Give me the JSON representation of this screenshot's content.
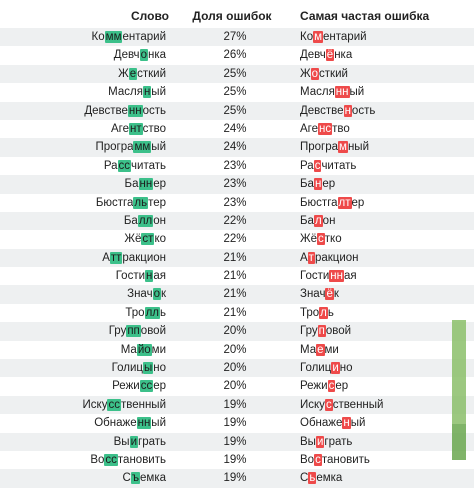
{
  "header": {
    "word": "Слово",
    "percent": "Доля ошибок",
    "common": "Самая частая ошибка"
  },
  "rows": [
    {
      "word": [
        [
          "Ко",
          ""
        ],
        [
          "мм",
          "g"
        ],
        [
          "ентарий",
          ""
        ]
      ],
      "pct": "27%",
      "common": [
        [
          "Ко",
          ""
        ],
        [
          "м",
          "r"
        ],
        [
          "ентарий",
          ""
        ]
      ]
    },
    {
      "word": [
        [
          "Девч",
          ""
        ],
        [
          "о",
          "g"
        ],
        [
          "нка",
          ""
        ]
      ],
      "pct": "26%",
      "common": [
        [
          "Девч",
          ""
        ],
        [
          "ё",
          "r"
        ],
        [
          "нка",
          ""
        ]
      ]
    },
    {
      "word": [
        [
          "Ж",
          ""
        ],
        [
          "е",
          "g"
        ],
        [
          "сткий",
          ""
        ]
      ],
      "pct": "25%",
      "common": [
        [
          "Ж",
          ""
        ],
        [
          "о",
          "r"
        ],
        [
          "сткий",
          ""
        ]
      ]
    },
    {
      "word": [
        [
          "Масля",
          ""
        ],
        [
          "н",
          "g"
        ],
        [
          "ый",
          ""
        ]
      ],
      "pct": "25%",
      "common": [
        [
          "Масля",
          ""
        ],
        [
          "нн",
          "r"
        ],
        [
          "ый",
          ""
        ]
      ]
    },
    {
      "word": [
        [
          "Девстве",
          ""
        ],
        [
          "нн",
          "g"
        ],
        [
          "ость",
          ""
        ]
      ],
      "pct": "25%",
      "common": [
        [
          "Девстве",
          ""
        ],
        [
          "н",
          "r"
        ],
        [
          "ость",
          ""
        ]
      ]
    },
    {
      "word": [
        [
          "Аге",
          ""
        ],
        [
          "нт",
          "g"
        ],
        [
          "ство",
          ""
        ]
      ],
      "pct": "24%",
      "common": [
        [
          "Аге",
          ""
        ],
        [
          "нс",
          "r"
        ],
        [
          "тво",
          ""
        ]
      ]
    },
    {
      "word": [
        [
          "Програ",
          ""
        ],
        [
          "мм",
          "g"
        ],
        [
          "ый",
          ""
        ]
      ],
      "pct": "24%",
      "common": [
        [
          "Програ",
          ""
        ],
        [
          "м",
          "r"
        ],
        [
          "ный",
          ""
        ]
      ]
    },
    {
      "word": [
        [
          "Ра",
          ""
        ],
        [
          "сс",
          "g"
        ],
        [
          "читать",
          ""
        ]
      ],
      "pct": "23%",
      "common": [
        [
          "Ра",
          ""
        ],
        [
          "с",
          "r"
        ],
        [
          "читать",
          ""
        ]
      ]
    },
    {
      "word": [
        [
          "Ба",
          ""
        ],
        [
          "нн",
          "g"
        ],
        [
          "ер",
          ""
        ]
      ],
      "pct": "23%",
      "common": [
        [
          "Ба",
          ""
        ],
        [
          "н",
          "r"
        ],
        [
          "ер",
          ""
        ]
      ]
    },
    {
      "word": [
        [
          "Бюстга",
          ""
        ],
        [
          "ль",
          "g"
        ],
        [
          "тер",
          ""
        ]
      ],
      "pct": "23%",
      "common": [
        [
          "Бюстга",
          ""
        ],
        [
          "лт",
          "r"
        ],
        [
          "ер",
          ""
        ]
      ]
    },
    {
      "word": [
        [
          "Ба",
          ""
        ],
        [
          "лл",
          "g"
        ],
        [
          "он",
          ""
        ]
      ],
      "pct": "22%",
      "common": [
        [
          "Ба",
          ""
        ],
        [
          "л",
          "r"
        ],
        [
          "он",
          ""
        ]
      ]
    },
    {
      "word": [
        [
          "Жё",
          ""
        ],
        [
          "ст",
          "g"
        ],
        [
          "ко",
          ""
        ]
      ],
      "pct": "22%",
      "common": [
        [
          "Жё",
          ""
        ],
        [
          "с",
          "r"
        ],
        [
          "тко",
          ""
        ]
      ]
    },
    {
      "word": [
        [
          "А",
          ""
        ],
        [
          "тт",
          "g"
        ],
        [
          "ракцион",
          ""
        ]
      ],
      "pct": "21%",
      "common": [
        [
          "А",
          ""
        ],
        [
          "т",
          "r"
        ],
        [
          "ракцион",
          ""
        ]
      ]
    },
    {
      "word": [
        [
          "Гости",
          ""
        ],
        [
          "н",
          "g"
        ],
        [
          "ая",
          ""
        ]
      ],
      "pct": "21%",
      "common": [
        [
          "Гости",
          ""
        ],
        [
          "нн",
          "r"
        ],
        [
          "ая",
          ""
        ]
      ]
    },
    {
      "word": [
        [
          "Знач",
          ""
        ],
        [
          "о",
          "g"
        ],
        [
          "к",
          ""
        ]
      ],
      "pct": "21%",
      "common": [
        [
          "Знач",
          ""
        ],
        [
          "ё",
          "r"
        ],
        [
          "к",
          ""
        ]
      ]
    },
    {
      "word": [
        [
          "Тро",
          ""
        ],
        [
          "лл",
          "g"
        ],
        [
          "ь",
          ""
        ]
      ],
      "pct": "21%",
      "common": [
        [
          "Тро",
          ""
        ],
        [
          "л",
          "r"
        ],
        [
          "ь",
          ""
        ]
      ]
    },
    {
      "word": [
        [
          "Гру",
          ""
        ],
        [
          "пп",
          "g"
        ],
        [
          "овой",
          ""
        ]
      ],
      "pct": "20%",
      "common": [
        [
          "Гру",
          ""
        ],
        [
          "п",
          "r"
        ],
        [
          "овой",
          ""
        ]
      ]
    },
    {
      "word": [
        [
          "Ма",
          ""
        ],
        [
          "йо",
          "g"
        ],
        [
          "ми",
          ""
        ]
      ],
      "pct": "20%",
      "common": [
        [
          "Ма",
          ""
        ],
        [
          "е",
          "r"
        ],
        [
          "ми",
          ""
        ]
      ]
    },
    {
      "word": [
        [
          "Голиц",
          ""
        ],
        [
          "ы",
          "g"
        ],
        [
          "но",
          ""
        ]
      ],
      "pct": "20%",
      "common": [
        [
          "Голиц",
          ""
        ],
        [
          "и",
          "r"
        ],
        [
          "но",
          ""
        ]
      ]
    },
    {
      "word": [
        [
          "Режи",
          ""
        ],
        [
          "сс",
          "g"
        ],
        [
          "ер",
          ""
        ]
      ],
      "pct": "20%",
      "common": [
        [
          "Режи",
          ""
        ],
        [
          "с",
          "r"
        ],
        [
          "ер",
          ""
        ]
      ]
    },
    {
      "word": [
        [
          "Иску",
          ""
        ],
        [
          "сс",
          "g"
        ],
        [
          "твенный",
          ""
        ]
      ],
      "pct": "19%",
      "common": [
        [
          "Иску",
          ""
        ],
        [
          "с",
          "r"
        ],
        [
          "ственный",
          ""
        ]
      ]
    },
    {
      "word": [
        [
          "Обнаже",
          ""
        ],
        [
          "нн",
          "g"
        ],
        [
          "ый",
          ""
        ]
      ],
      "pct": "19%",
      "common": [
        [
          "Обнаже",
          ""
        ],
        [
          "н",
          "r"
        ],
        [
          "ый",
          ""
        ]
      ]
    },
    {
      "word": [
        [
          "Вы",
          ""
        ],
        [
          "и",
          "g"
        ],
        [
          "грать",
          ""
        ]
      ],
      "pct": "19%",
      "common": [
        [
          "Вы",
          ""
        ],
        [
          "и",
          "r"
        ],
        [
          "грать",
          ""
        ]
      ]
    },
    {
      "word": [
        [
          "Во",
          ""
        ],
        [
          "сс",
          "g"
        ],
        [
          "тановить",
          ""
        ]
      ],
      "pct": "19%",
      "common": [
        [
          "Во",
          ""
        ],
        [
          "с",
          "r"
        ],
        [
          "тановить",
          ""
        ]
      ]
    },
    {
      "word": [
        [
          "С",
          ""
        ],
        [
          "ъ",
          "g"
        ],
        [
          "емка",
          ""
        ]
      ],
      "pct": "19%",
      "common": [
        [
          "С",
          ""
        ],
        [
          "ь",
          "r"
        ],
        [
          "емка",
          ""
        ]
      ]
    }
  ],
  "colors": {
    "correct_highlight": "#3cc08a",
    "error_highlight": "#ee4a4a",
    "stripe": "#eef0f1"
  }
}
